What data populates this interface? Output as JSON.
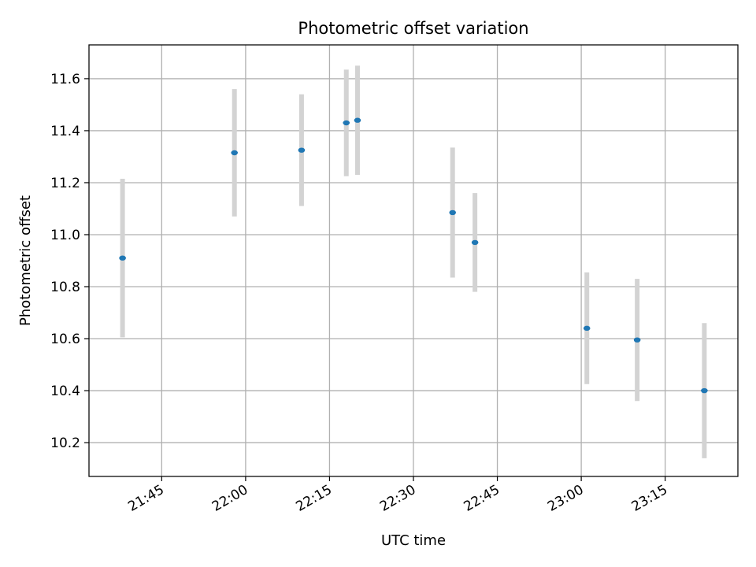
{
  "chart_data": {
    "type": "scatter",
    "title": "Photometric offset variation",
    "xlabel": "UTC time",
    "ylabel": "Photometric offset",
    "x_tick_labels": [
      "21:45",
      "22:00",
      "22:15",
      "22:30",
      "22:45",
      "23:00",
      "23:15"
    ],
    "y_tick_labels": [
      "10.2",
      "10.4",
      "10.6",
      "10.8",
      "11.0",
      "11.2",
      "11.4",
      "11.6"
    ],
    "xlim": [
      "21:32",
      "23:28"
    ],
    "ylim": [
      10.07,
      11.73
    ],
    "grid": true,
    "series": [
      {
        "x": [
          "21:38",
          "21:58",
          "22:10",
          "22:18",
          "22:20",
          "22:37",
          "22:41",
          "23:01",
          "23:10",
          "23:22"
        ],
        "y": [
          10.91,
          11.315,
          11.325,
          11.43,
          11.44,
          11.085,
          10.97,
          10.64,
          10.595,
          10.4
        ],
        "err": [
          0.305,
          0.245,
          0.215,
          0.205,
          0.21,
          0.25,
          0.19,
          0.215,
          0.235,
          0.26
        ],
        "color": "#1f77b4",
        "errorbar_color": "#d3d3d3"
      }
    ]
  }
}
